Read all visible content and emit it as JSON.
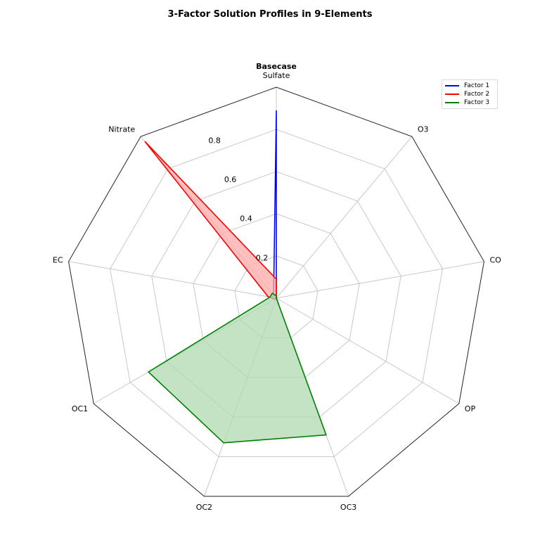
{
  "chart_data": {
    "type": "radar",
    "title": "3-Factor Solution Profiles in 9-Elements",
    "subtitle": "Basecase",
    "categories": [
      "Sulfate",
      "Nitrate",
      "EC",
      "OC1",
      "OC2",
      "OC3",
      "OP",
      "CO",
      "O3"
    ],
    "series": [
      {
        "name": "Factor 1",
        "color": "#0000ff",
        "values": [
          0.89,
          0.02,
          0.02,
          0.0,
          0.0,
          0.03,
          0.0,
          0.0,
          0.0
        ],
        "fill": false
      },
      {
        "name": "Factor 2",
        "color": "#ff0000",
        "values": [
          0.09,
          0.97,
          0.04,
          0.01,
          0.0,
          0.0,
          0.0,
          0.0,
          0.0
        ],
        "fill": true,
        "fill_color": "#ffaaaa"
      },
      {
        "name": "Factor 3",
        "color": "#008000",
        "values": [
          0.01,
          0.03,
          0.03,
          0.7,
          0.73,
          0.69,
          0.0,
          0.0,
          0.0
        ],
        "fill": true,
        "fill_color": "#b0d8b0"
      }
    ],
    "rlim": [
      0,
      1.0
    ],
    "r_ticks": [
      0.2,
      0.4,
      0.6,
      0.8
    ],
    "r_tick_labels": [
      "0.2",
      "0.4",
      "0.6",
      "0.8"
    ],
    "grid": true,
    "legend_position": "upper right"
  },
  "labels": {
    "title": "3-Factor Solution Profiles in 9-Elements",
    "subtitle": "Basecase"
  }
}
